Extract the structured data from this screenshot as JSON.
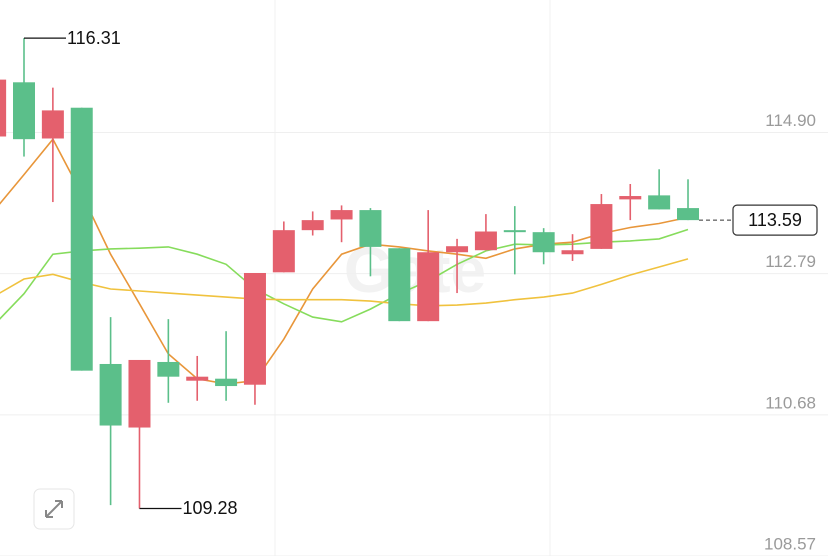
{
  "chart_data": {
    "type": "candlestick",
    "watermark": "Gate",
    "open": [
      114.84,
      115.65,
      114.81,
      115.27,
      111.44,
      110.49,
      111.47,
      111.19,
      111.22,
      111.13,
      112.81,
      113.44,
      113.6,
      113.74,
      113.17,
      112.08,
      113.11,
      113.14,
      113.44,
      113.41,
      113.08,
      113.16,
      113.9,
      113.96,
      113.77
    ],
    "high": [
      115.72,
      116.31,
      115.57,
      115.27,
      112.14,
      111.5,
      112.11,
      111.56,
      111.93,
      112.8,
      113.57,
      113.72,
      113.81,
      113.77,
      113.17,
      113.74,
      113.31,
      113.68,
      113.8,
      113.47,
      113.38,
      113.98,
      114.13,
      114.35,
      114.2
    ],
    "low": [
      114.84,
      114.54,
      113.86,
      111.34,
      109.33,
      109.28,
      110.86,
      110.89,
      110.89,
      110.83,
      112.81,
      113.36,
      113.26,
      112.75,
      112.08,
      112.08,
      112.5,
      113.14,
      112.78,
      112.93,
      112.98,
      113.16,
      113.59,
      113.75,
      113.59
    ],
    "close": [
      115.69,
      114.8,
      115.23,
      111.34,
      110.52,
      111.5,
      111.25,
      111.25,
      111.11,
      112.8,
      113.44,
      113.59,
      113.74,
      113.19,
      112.08,
      113.11,
      113.2,
      113.42,
      113.41,
      113.11,
      113.14,
      113.83,
      113.95,
      113.75,
      113.59
    ],
    "up_color": "#e4606d",
    "down_color": "#5bbf8a",
    "lines": [
      {
        "color": "#e8963a",
        "values": [
          113.75,
          114.27,
          114.8,
          113.98,
          113.08,
          112.34,
          111.59,
          111.22,
          111.14,
          111.19,
          111.81,
          112.56,
          113.08,
          113.23,
          113.19,
          113.13,
          113.08,
          113.02,
          113.16,
          113.23,
          113.26,
          113.39,
          113.48,
          113.54,
          113.63
        ]
      },
      {
        "color": "#86dc5c",
        "values": [
          112.04,
          112.49,
          113.08,
          113.13,
          113.16,
          113.17,
          113.19,
          113.08,
          112.93,
          112.56,
          112.34,
          112.14,
          112.07,
          112.26,
          112.49,
          112.68,
          112.93,
          113.13,
          113.23,
          113.22,
          113.23,
          113.26,
          113.28,
          113.31,
          113.45
        ]
      },
      {
        "color": "#f0c23e",
        "values": [
          112.46,
          112.71,
          112.78,
          112.66,
          112.56,
          112.53,
          112.5,
          112.47,
          112.44,
          112.41,
          112.4,
          112.4,
          112.4,
          112.38,
          112.34,
          112.31,
          112.32,
          112.35,
          112.4,
          112.44,
          112.5,
          112.63,
          112.77,
          112.89,
          113.01
        ]
      }
    ],
    "ylim": [
      108.57,
      116.88
    ],
    "yticks": [
      {
        "value": 114.9,
        "label": "114.90"
      },
      112.79,
      110.68,
      108.57
    ],
    "grid": true
  }
}
